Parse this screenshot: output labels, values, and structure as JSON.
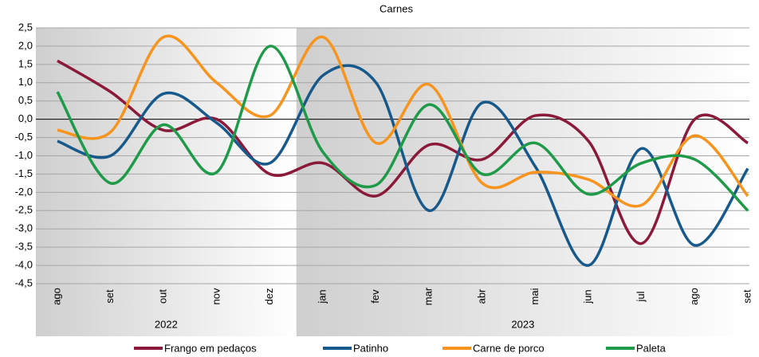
{
  "chart_data": {
    "type": "line",
    "title": "Carnes",
    "categories": [
      "ago",
      "set",
      "out",
      "nov",
      "dez",
      "jan",
      "fev",
      "mar",
      "abr",
      "mai",
      "jun",
      "jul",
      "ago",
      "set"
    ],
    "years": [
      "2022",
      "2023"
    ],
    "series": [
      {
        "name": "Frango em pedaços",
        "color": "#8b1a3a",
        "values": [
          1.6,
          0.75,
          -0.3,
          0.0,
          -1.5,
          -1.2,
          -2.1,
          -0.7,
          -1.1,
          0.1,
          -0.6,
          -3.4,
          0.0,
          -0.65
        ]
      },
      {
        "name": "Patinho",
        "color": "#17598a",
        "values": [
          -0.6,
          -1.0,
          0.7,
          -0.1,
          -1.2,
          1.2,
          1.0,
          -2.5,
          0.45,
          -1.3,
          -4.0,
          -0.8,
          -3.45,
          -1.35
        ]
      },
      {
        "name": "Carne de porco",
        "color": "#f7941d",
        "values": [
          -0.3,
          -0.35,
          2.25,
          1.0,
          0.1,
          2.25,
          -0.65,
          0.95,
          -1.75,
          -1.45,
          -1.65,
          -2.35,
          -0.45,
          -2.1
        ]
      },
      {
        "name": "Paleta",
        "color": "#1e9a48",
        "values": [
          0.75,
          -1.75,
          -0.15,
          -1.45,
          2.0,
          -0.9,
          -1.8,
          0.4,
          -1.5,
          -0.65,
          -2.05,
          -1.2,
          -1.1,
          -2.5
        ]
      }
    ],
    "ylim": [
      -4.5,
      2.5
    ],
    "yticks": [
      {
        "value": 2.5,
        "label": "2,5"
      },
      {
        "value": 2,
        "label": "2,0"
      },
      {
        "value": 1.5,
        "label": "1,5"
      },
      {
        "value": 1,
        "label": "1,0"
      },
      {
        "value": 0.5,
        "label": "0,5"
      },
      {
        "value": 0,
        "label": "0,0"
      },
      {
        "value": -0.5,
        "label": "-0,5"
      },
      {
        "value": -1,
        "label": "-1,0"
      },
      {
        "value": -1.5,
        "label": "-1,5"
      },
      {
        "value": -2,
        "label": "-2,0"
      },
      {
        "value": -2.5,
        "label": "-2,5"
      },
      {
        "value": -3,
        "label": "-3,0"
      },
      {
        "value": -3.5,
        "label": "-3,5"
      },
      {
        "value": -4,
        "label": "-4,0"
      },
      {
        "value": -4.5,
        "label": "-4,5"
      }
    ],
    "grid": true,
    "smooth": true,
    "legend": "bottom"
  }
}
